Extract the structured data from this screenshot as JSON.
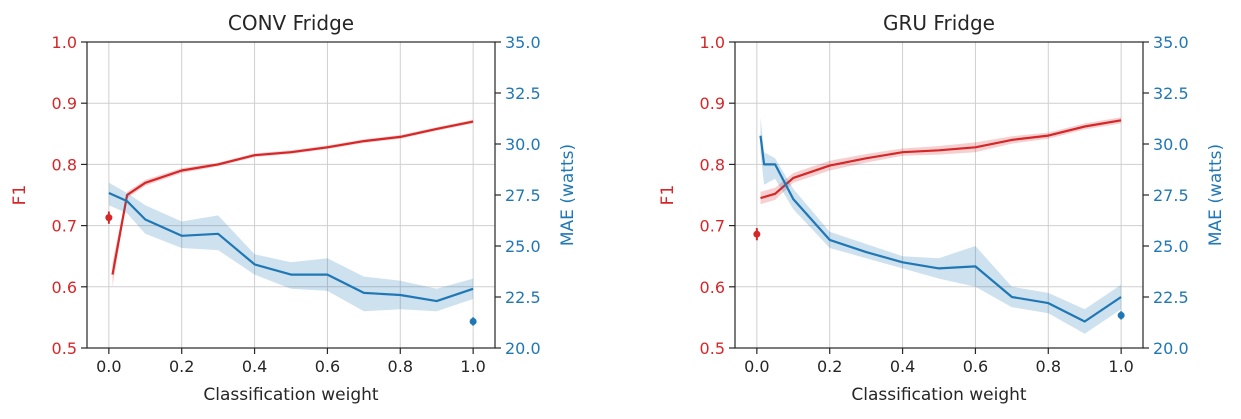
{
  "colors": {
    "f1": "#d62728",
    "mae": "#1f77b4"
  },
  "chart_data": [
    {
      "type": "line",
      "title": "CONV Fridge",
      "xlabel": "Classification weight",
      "ylabel_left": "F1",
      "ylabel_right": "MAE (watts)",
      "xlim": [
        -0.06,
        1.06
      ],
      "ylim_left": [
        0.5,
        1.0
      ],
      "ylim_right": [
        20.0,
        35.0
      ],
      "xticks": [
        "0.0",
        "0.2",
        "0.4",
        "0.6",
        "0.8",
        "1.0"
      ],
      "yticks_left": [
        "0.5",
        "0.6",
        "0.7",
        "0.8",
        "0.9",
        "1.0"
      ],
      "yticks_right": [
        "20.0",
        "22.5",
        "25.0",
        "27.5",
        "30.0",
        "32.5",
        "35.0"
      ],
      "grid": true,
      "series": [
        {
          "axis": "left",
          "x": [
            0.01,
            0.05,
            0.1,
            0.2,
            0.3,
            0.4,
            0.5,
            0.6,
            0.7,
            0.8,
            0.9,
            1.0
          ],
          "y": [
            0.62,
            0.75,
            0.77,
            0.79,
            0.8,
            0.815,
            0.82,
            0.828,
            0.838,
            0.845,
            0.858,
            0.87
          ],
          "y_low": [
            0.6,
            0.745,
            0.765,
            0.786,
            0.797,
            0.812,
            0.817,
            0.825,
            0.835,
            0.842,
            0.855,
            0.867
          ],
          "y_high": [
            0.64,
            0.755,
            0.775,
            0.794,
            0.803,
            0.818,
            0.823,
            0.831,
            0.841,
            0.848,
            0.861,
            0.873
          ]
        },
        {
          "axis": "right",
          "x": [
            0.0,
            0.05,
            0.1,
            0.2,
            0.3,
            0.4,
            0.5,
            0.6,
            0.7,
            0.8,
            0.9,
            1.0
          ],
          "y": [
            27.6,
            27.2,
            26.3,
            25.5,
            25.6,
            24.1,
            23.6,
            23.6,
            22.7,
            22.6,
            22.3,
            22.9
          ],
          "y_low": [
            27.0,
            26.6,
            25.6,
            24.9,
            24.8,
            23.6,
            22.9,
            22.8,
            21.8,
            21.9,
            21.8,
            22.4
          ],
          "y_high": [
            28.1,
            27.6,
            27.0,
            26.2,
            26.5,
            24.6,
            24.2,
            24.4,
            23.5,
            23.3,
            22.9,
            23.4
          ]
        }
      ],
      "points": [
        {
          "axis": "left",
          "x": 0.0,
          "y": 0.713,
          "low": 0.703,
          "high": 0.723
        },
        {
          "axis": "right",
          "x": 1.0,
          "y": 21.3,
          "low": 21.1,
          "high": 21.5
        }
      ]
    },
    {
      "type": "line",
      "title": "GRU Fridge",
      "xlabel": "Classification weight",
      "ylabel_left": "F1",
      "ylabel_right": "MAE (watts)",
      "xlim": [
        -0.06,
        1.06
      ],
      "ylim_left": [
        0.5,
        1.0
      ],
      "ylim_right": [
        20.0,
        35.0
      ],
      "xticks": [
        "0.0",
        "0.2",
        "0.4",
        "0.6",
        "0.8",
        "1.0"
      ],
      "yticks_left": [
        "0.5",
        "0.6",
        "0.7",
        "0.8",
        "0.9",
        "1.0"
      ],
      "yticks_right": [
        "20.0",
        "22.5",
        "25.0",
        "27.5",
        "30.0",
        "32.5",
        "35.0"
      ],
      "grid": true,
      "series": [
        {
          "axis": "left",
          "x": [
            0.01,
            0.05,
            0.1,
            0.2,
            0.3,
            0.4,
            0.5,
            0.6,
            0.7,
            0.8,
            0.9,
            1.0
          ],
          "y": [
            0.745,
            0.752,
            0.778,
            0.798,
            0.81,
            0.82,
            0.823,
            0.828,
            0.84,
            0.847,
            0.862,
            0.872
          ],
          "y_low": [
            0.735,
            0.742,
            0.77,
            0.79,
            0.803,
            0.814,
            0.816,
            0.82,
            0.834,
            0.842,
            0.857,
            0.867
          ],
          "y_high": [
            0.755,
            0.762,
            0.786,
            0.806,
            0.817,
            0.826,
            0.83,
            0.836,
            0.846,
            0.852,
            0.867,
            0.877
          ]
        },
        {
          "axis": "right",
          "x": [
            0.01,
            0.02,
            0.05,
            0.1,
            0.2,
            0.3,
            0.4,
            0.5,
            0.6,
            0.7,
            0.8,
            0.9,
            1.0
          ],
          "y": [
            30.4,
            29.0,
            29.0,
            27.3,
            25.3,
            24.7,
            24.2,
            23.9,
            24.0,
            22.5,
            22.2,
            21.3,
            22.5
          ],
          "y_low": [
            29.6,
            28.0,
            28.3,
            26.8,
            24.9,
            24.4,
            23.9,
            23.4,
            23.0,
            22.0,
            21.7,
            20.7,
            21.9
          ],
          "y_high": [
            31.3,
            29.6,
            29.3,
            27.8,
            25.7,
            25.1,
            24.5,
            24.4,
            25.0,
            23.0,
            22.7,
            21.9,
            23.1
          ]
        }
      ],
      "points": [
        {
          "axis": "left",
          "x": 0.0,
          "y": 0.686,
          "low": 0.676,
          "high": 0.696
        },
        {
          "axis": "right",
          "x": 1.0,
          "y": 21.6,
          "low": 21.4,
          "high": 21.8
        }
      ]
    }
  ]
}
